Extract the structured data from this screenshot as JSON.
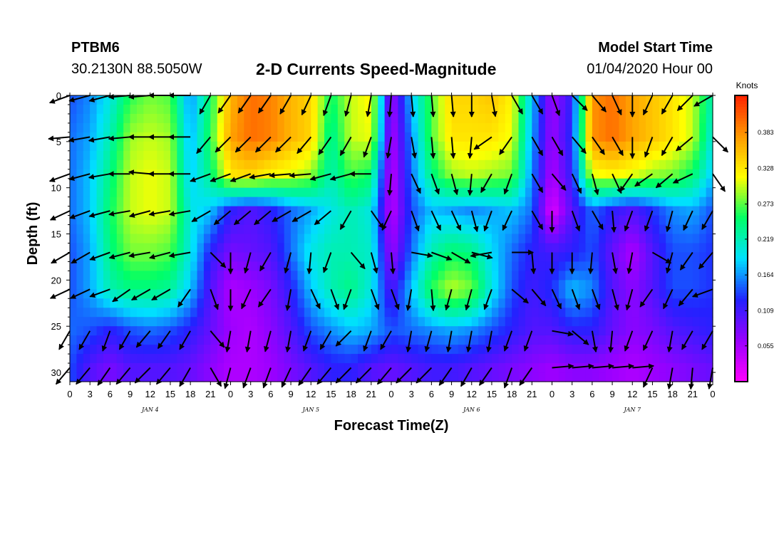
{
  "header": {
    "station_id": "PTBM6",
    "coords": "30.2130N 88.5050W",
    "title": "2-D Currents Speed-Magnitude",
    "model_start_label": "Model Start Time",
    "model_start_value": "01/04/2020 Hour 00"
  },
  "chart_data": {
    "type": "heatmap",
    "title": "2-D Currents Speed-Magnitude",
    "xlabel": "Forecast Time(Z)",
    "ylabel": "Depth (ft)",
    "x_hours_range": [
      0,
      96
    ],
    "y_range": [
      0,
      31
    ],
    "y_inverted": true,
    "x_tick_labels": [
      "0",
      "3",
      "6",
      "9",
      "12",
      "15",
      "18",
      "21",
      "0",
      "3",
      "6",
      "9",
      "12",
      "15",
      "18",
      "21",
      "0",
      "3",
      "6",
      "9",
      "12",
      "15",
      "18",
      "21",
      "0",
      "3",
      "6",
      "9",
      "12",
      "15",
      "18",
      "21",
      "0"
    ],
    "y_ticks": [
      0,
      5,
      10,
      15,
      20,
      25,
      30
    ],
    "day_labels": [
      {
        "hour": 12,
        "label": "JAN 4"
      },
      {
        "hour": 36,
        "label": "JAN 5"
      },
      {
        "hour": 60,
        "label": "JAN 6"
      },
      {
        "hour": 84,
        "label": "JAN 7"
      }
    ],
    "colorbar": {
      "unit": "Knots",
      "range": [
        0,
        0.44
      ],
      "labels": [
        "0.383",
        "0.328",
        "0.273",
        "0.219",
        "0.164",
        "0.109",
        "0.055"
      ],
      "colors": [
        "#ff00ff",
        "#9900ff",
        "#2222ff",
        "#00e0ff",
        "#00ff66",
        "#ffff00",
        "#ff9900",
        "#ff2200"
      ]
    },
    "depths": [
      0,
      4.5,
      8.5,
      12.5,
      17,
      21,
      25.5,
      29.5
    ],
    "grid_speed": [
      [
        0.14,
        0.16,
        0.2,
        0.26,
        0.28,
        0.27,
        0.16,
        0.25,
        0.36,
        0.4,
        0.39,
        0.36,
        0.34,
        0.25,
        0.3,
        0.32,
        0.06,
        0.18,
        0.27,
        0.34,
        0.34,
        0.35,
        0.32,
        0.18,
        0.06,
        0.12,
        0.38,
        0.4,
        0.37,
        0.35,
        0.33,
        0.3,
        0.22
      ],
      [
        0.15,
        0.17,
        0.22,
        0.29,
        0.3,
        0.29,
        0.17,
        0.26,
        0.37,
        0.4,
        0.39,
        0.36,
        0.34,
        0.23,
        0.3,
        0.31,
        0.05,
        0.16,
        0.27,
        0.33,
        0.33,
        0.33,
        0.31,
        0.17,
        0.06,
        0.13,
        0.38,
        0.4,
        0.37,
        0.35,
        0.33,
        0.3,
        0.2
      ],
      [
        0.15,
        0.18,
        0.24,
        0.3,
        0.31,
        0.3,
        0.18,
        0.24,
        0.33,
        0.34,
        0.32,
        0.31,
        0.29,
        0.22,
        0.27,
        0.25,
        0.04,
        0.15,
        0.24,
        0.29,
        0.3,
        0.29,
        0.28,
        0.16,
        0.05,
        0.12,
        0.31,
        0.32,
        0.31,
        0.29,
        0.28,
        0.25,
        0.18
      ],
      [
        0.15,
        0.18,
        0.25,
        0.3,
        0.31,
        0.3,
        0.2,
        0.18,
        0.12,
        0.1,
        0.12,
        0.15,
        0.17,
        0.2,
        0.22,
        0.2,
        0.04,
        0.14,
        0.18,
        0.17,
        0.16,
        0.17,
        0.18,
        0.15,
        0.02,
        0.1,
        0.15,
        0.12,
        0.1,
        0.13,
        0.16,
        0.17,
        0.14
      ],
      [
        0.14,
        0.17,
        0.24,
        0.28,
        0.28,
        0.27,
        0.2,
        0.12,
        0.08,
        0.09,
        0.1,
        0.15,
        0.2,
        0.22,
        0.22,
        0.21,
        0.06,
        0.15,
        0.22,
        0.25,
        0.24,
        0.19,
        0.15,
        0.12,
        0.11,
        0.12,
        0.14,
        0.09,
        0.05,
        0.1,
        0.14,
        0.14,
        0.13
      ],
      [
        0.14,
        0.17,
        0.22,
        0.24,
        0.24,
        0.23,
        0.18,
        0.1,
        0.05,
        0.06,
        0.08,
        0.12,
        0.18,
        0.22,
        0.24,
        0.2,
        0.1,
        0.18,
        0.26,
        0.3,
        0.28,
        0.2,
        0.14,
        0.11,
        0.13,
        0.18,
        0.16,
        0.1,
        0.07,
        0.1,
        0.14,
        0.14,
        0.13
      ],
      [
        0.15,
        0.14,
        0.12,
        0.14,
        0.15,
        0.14,
        0.12,
        0.09,
        0.06,
        0.05,
        0.07,
        0.1,
        0.14,
        0.16,
        0.18,
        0.17,
        0.14,
        0.15,
        0.16,
        0.17,
        0.16,
        0.14,
        0.12,
        0.1,
        0.1,
        0.12,
        0.12,
        0.09,
        0.07,
        0.08,
        0.1,
        0.11,
        0.12
      ],
      [
        0.14,
        0.1,
        0.08,
        0.1,
        0.1,
        0.1,
        0.09,
        0.07,
        0.05,
        0.05,
        0.06,
        0.08,
        0.1,
        0.12,
        0.12,
        0.1,
        0.09,
        0.1,
        0.11,
        0.11,
        0.1,
        0.09,
        0.08,
        0.07,
        0.06,
        0.07,
        0.07,
        0.06,
        0.05,
        0.06,
        0.07,
        0.08,
        0.09
      ]
    ],
    "grid_direction_deg": [
      [
        250,
        255,
        255,
        265,
        265,
        270,
        270,
        210,
        215,
        215,
        215,
        210,
        205,
        200,
        195,
        190,
        185,
        175,
        175,
        175,
        180,
        170,
        150,
        150,
        160,
        135,
        140,
        155,
        180,
        205,
        210,
        225,
        240
      ],
      [
        265,
        260,
        260,
        265,
        270,
        270,
        270,
        220,
        225,
        225,
        225,
        225,
        220,
        215,
        210,
        200,
        190,
        170,
        175,
        175,
        185,
        235,
        215,
        150,
        150,
        140,
        145,
        150,
        180,
        200,
        210,
        230,
        135
      ],
      [
        250,
        255,
        260,
        270,
        275,
        270,
        270,
        250,
        250,
        250,
        260,
        265,
        265,
        255,
        255,
        270,
        185,
        155,
        160,
        165,
        185,
        210,
        200,
        150,
        140,
        155,
        165,
        155,
        215,
        235,
        230,
        245,
        145
      ],
      [
        245,
        250,
        255,
        260,
        255,
        260,
        260,
        240,
        230,
        230,
        230,
        240,
        240,
        230,
        210,
        145,
        205,
        160,
        155,
        155,
        165,
        200,
        205,
        150,
        180,
        160,
        150,
        175,
        200,
        200,
        195,
        205,
        210
      ],
      [
        240,
        240,
        250,
        255,
        260,
        255,
        260,
        135,
        180,
        195,
        210,
        195,
        185,
        200,
        140,
        165,
        175,
        100,
        110,
        120,
        105,
        260,
        90,
        175,
        180,
        180,
        185,
        170,
        190,
        120,
        195,
        215,
        220
      ],
      [
        245,
        245,
        250,
        235,
        240,
        240,
        215,
        160,
        180,
        205,
        215,
        190,
        155,
        160,
        200,
        160,
        160,
        190,
        175,
        195,
        195,
        200,
        130,
        140,
        155,
        160,
        160,
        165,
        195,
        215,
        205,
        220,
        250
      ],
      [
        210,
        210,
        200,
        210,
        220,
        215,
        210,
        140,
        190,
        190,
        195,
        190,
        200,
        210,
        225,
        200,
        210,
        190,
        195,
        190,
        190,
        190,
        200,
        200,
        100,
        130,
        170,
        185,
        200,
        205,
        190,
        210,
        210
      ],
      [
        220,
        220,
        215,
        220,
        225,
        220,
        210,
        150,
        195,
        200,
        200,
        205,
        215,
        220,
        225,
        225,
        220,
        225,
        225,
        215,
        210,
        215,
        200,
        215,
        85,
        85,
        85,
        85,
        85,
        205,
        190,
        185,
        190
      ]
    ]
  }
}
